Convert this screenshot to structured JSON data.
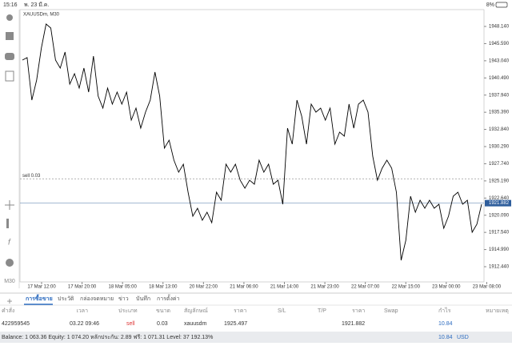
{
  "status_bar": {
    "time": "15:16",
    "date": "พ. 23 มี.ค.",
    "battery": "8%"
  },
  "toolbar": {
    "timeframe": "M30"
  },
  "chart_data": {
    "type": "line",
    "title": "XAUUSDm, M30",
    "x_labels": [
      "17 Mar 12:00",
      "17 Mar 20:00",
      "18 Mar 05:00",
      "18 Mar 13:00",
      "20 Mar 22:00",
      "21 Mar 06:00",
      "21 Mar 14:00",
      "21 Mar 23:00",
      "22 Mar 07:00",
      "22 Mar 15:00",
      "23 Mar 00:00",
      "23 Mar 08:00"
    ],
    "series": [
      {
        "color": "#000000",
        "values": [
          1943.14,
          1943.5,
          1937.19,
          1940.17,
          1944.93,
          1948.5,
          1947.9,
          1943.14,
          1941.95,
          1944.33,
          1939.57,
          1941.12,
          1938.98,
          1941.95,
          1938.38,
          1943.74,
          1937.79,
          1936.0,
          1938.98,
          1936.6,
          1938.38,
          1936.6,
          1938.38,
          1934.22,
          1936.0,
          1933.03,
          1935.41,
          1937.19,
          1941.36,
          1937.79,
          1930.05,
          1931.24,
          1928.27,
          1926.48,
          1927.67,
          1923.51,
          1919.94,
          1921.13,
          1919.34,
          1920.53,
          1918.98,
          1923.51,
          1922.32,
          1927.67,
          1926.48,
          1927.67,
          1925.29,
          1924.1,
          1925.29,
          1924.7,
          1928.27,
          1926.48,
          1927.67,
          1924.7,
          1925.29,
          1921.72,
          1933.03,
          1930.65,
          1937.19,
          1934.81,
          1930.65,
          1936.6,
          1935.41,
          1936.0,
          1934.22,
          1936.0,
          1930.65,
          1932.43,
          1931.84,
          1936.6,
          1933.03,
          1936.6,
          1937.19,
          1935.41,
          1928.86,
          1925.29,
          1927.08,
          1928.27,
          1927.08,
          1923.51,
          1913.39,
          1916.37,
          1922.91,
          1920.53,
          1922.32,
          1921.13,
          1922.32,
          1921.13,
          1921.72,
          1918.15,
          1919.94,
          1922.91,
          1923.51,
          1921.72,
          1922.32,
          1917.56,
          1918.75,
          1921.72
        ]
      }
    ],
    "ylim": [
      1910.18,
      1950.64
    ],
    "yticks": [
      {
        "value": 1912.44,
        "label": "1912.440"
      },
      {
        "value": 1914.99,
        "label": "1914.990"
      },
      {
        "value": 1917.54,
        "label": "1917.540"
      },
      {
        "value": 1920.09,
        "label": "1920.090"
      },
      {
        "value": 1922.64,
        "label": "1922.640"
      },
      {
        "value": 1925.19,
        "label": "1925.190"
      },
      {
        "value": 1927.74,
        "label": "1927.740"
      },
      {
        "value": 1930.29,
        "label": "1930.290"
      },
      {
        "value": 1932.84,
        "label": "1932.840"
      },
      {
        "value": 1935.39,
        "label": "1935.390"
      },
      {
        "value": 1937.94,
        "label": "1937.940"
      },
      {
        "value": 1940.49,
        "label": "1940.490"
      },
      {
        "value": 1943.04,
        "label": "1943.040"
      },
      {
        "value": 1945.59,
        "label": "1945.590"
      },
      {
        "value": 1948.14,
        "label": "1948.140"
      }
    ],
    "current_price": 1921.882,
    "order_line": {
      "label": "sell 0.03",
      "value": 1925.497
    }
  },
  "tabs": [
    "การซื้อขาย",
    "ประวัติ",
    "กล่องจดหมาย",
    "ข่าว",
    "บันทึก",
    "การตั้งค่า"
  ],
  "table": {
    "headers": [
      "คำสั่ง",
      "เวลา",
      "ประเภท",
      "ขนาด",
      "สัญลักษณ์",
      "ราคา",
      "S/L",
      "T/P",
      "ราคา",
      "Swap",
      "กำไร",
      "หมายเหตุ"
    ],
    "rows": [
      [
        "422959545",
        "03.22 09:46",
        "sell",
        "0.03",
        "xauusdm",
        "1925.497",
        "1921.882",
        "10.84"
      ]
    ]
  },
  "balance": {
    "text": "Balance: 1 063.36 Equity: 1 074.20 หลักประกัน: 2.89 ฟรี: 1 071.31 Level: 37 192.13%",
    "profit": "10.84",
    "currency": "USD"
  }
}
